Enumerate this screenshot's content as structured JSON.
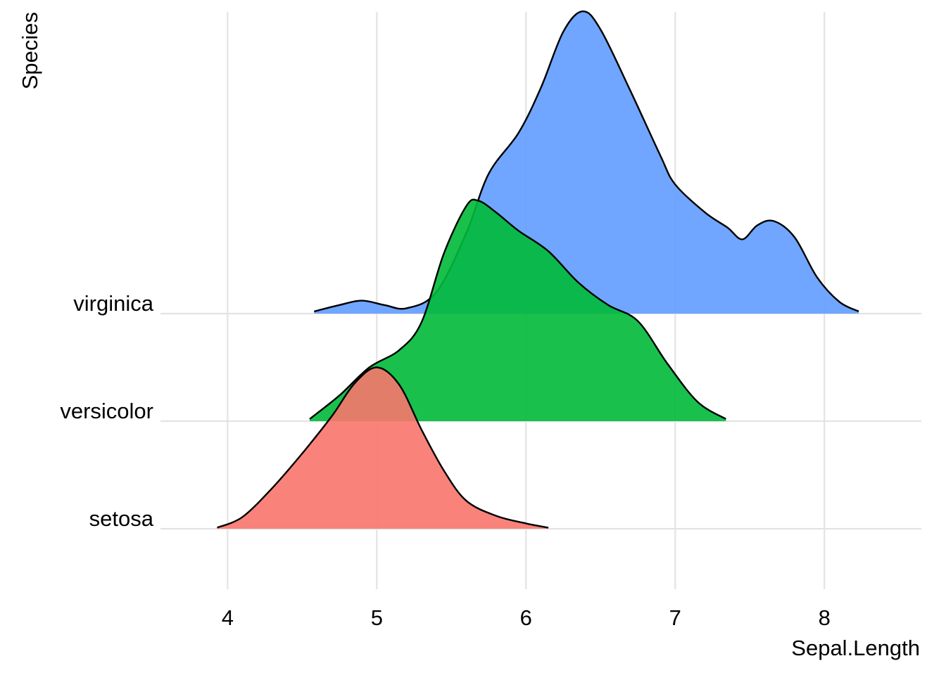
{
  "chart_data": {
    "type": "ridgeline",
    "title": "",
    "xlabel": "Sepal.Length",
    "ylabel": "Species",
    "xlim": [
      3.55,
      8.65
    ],
    "x_ticks": [
      4,
      5,
      6,
      7,
      8
    ],
    "categories": [
      "setosa",
      "versicolor",
      "virginica"
    ],
    "grid": true,
    "legend": "none",
    "fill_opacity": 0.9,
    "series": [
      {
        "name": "setosa",
        "color": "#F8766D",
        "x": [
          3.93,
          4.1,
          4.3,
          4.5,
          4.7,
          4.85,
          5.0,
          5.15,
          5.3,
          5.45,
          5.6,
          5.8,
          6.0,
          6.15
        ],
        "density": [
          0.01,
          0.11,
          0.38,
          0.7,
          1.05,
          1.35,
          1.5,
          1.34,
          0.92,
          0.54,
          0.26,
          0.12,
          0.05,
          0.01
        ]
      },
      {
        "name": "versicolor",
        "color": "#00BA38",
        "x": [
          4.55,
          4.75,
          4.95,
          5.15,
          5.3,
          5.45,
          5.6,
          5.68,
          5.8,
          5.95,
          6.15,
          6.35,
          6.55,
          6.75,
          6.95,
          7.15,
          7.34
        ],
        "density": [
          0.02,
          0.24,
          0.5,
          0.66,
          0.92,
          1.56,
          2.0,
          2.05,
          1.94,
          1.77,
          1.58,
          1.29,
          1.08,
          0.93,
          0.53,
          0.18,
          0.02
        ]
      },
      {
        "name": "virginica",
        "color": "#619CFF",
        "x": [
          4.58,
          4.75,
          4.9,
          5.05,
          5.2,
          5.4,
          5.6,
          5.75,
          5.95,
          6.1,
          6.25,
          6.38,
          6.5,
          6.7,
          6.9,
          7.0,
          7.2,
          7.35,
          7.45,
          7.55,
          7.66,
          7.8,
          7.95,
          8.1,
          8.23
        ],
        "density": [
          0.02,
          0.08,
          0.12,
          0.08,
          0.05,
          0.2,
          0.75,
          1.3,
          1.68,
          2.1,
          2.62,
          2.81,
          2.64,
          2.07,
          1.47,
          1.2,
          0.94,
          0.8,
          0.69,
          0.82,
          0.86,
          0.71,
          0.34,
          0.11,
          0.02
        ]
      }
    ]
  }
}
